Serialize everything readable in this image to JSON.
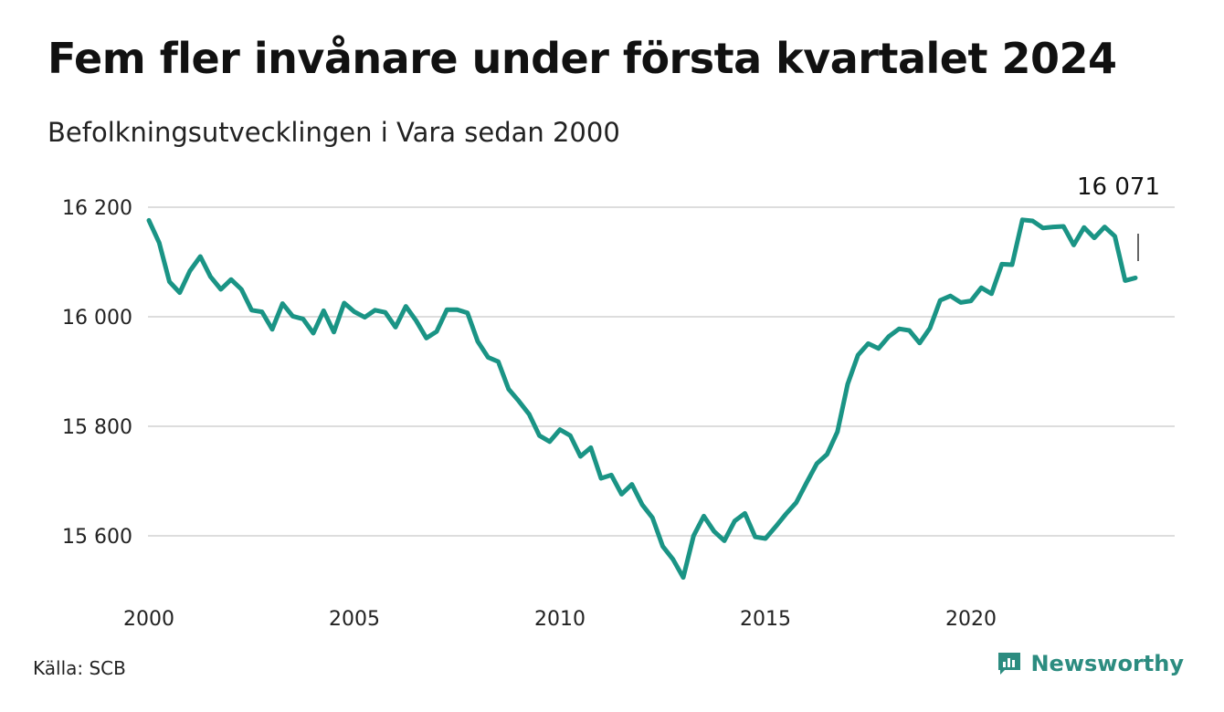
{
  "title": "Fem fler invånare under första kvartalet 2024",
  "subtitle": "Befolkningsutvecklingen i Vara sedan 2000",
  "source": "Källa: SCB",
  "brand": "Newsworthy",
  "colors": {
    "line": "#1a9485",
    "grid": "#dddddd",
    "brand": "#2c8c80"
  },
  "chart_data": {
    "type": "line",
    "title": "Fem fler invånare under första kvartalet 2024",
    "subtitle": "Befolkningsutvecklingen i Vara sedan 2000",
    "xlabel": "",
    "ylabel": "",
    "xlim": [
      2000,
      2024.25
    ],
    "ylim": [
      15500,
      16230
    ],
    "y_ticks": [
      15600,
      15800,
      16000,
      16200
    ],
    "y_tick_labels": [
      "15 600",
      "15 800",
      "16 000",
      "16 200"
    ],
    "x_ticks": [
      2000,
      2005,
      2010,
      2015,
      2020
    ],
    "x_tick_labels": [
      "2000",
      "2005",
      "2010",
      "2015",
      "2020"
    ],
    "grid": true,
    "end_label": "16 071",
    "x": [
      2000.0,
      2000.25,
      2000.5,
      2000.75,
      2001.0,
      2001.25,
      2001.5,
      2001.75,
      2002.0,
      2002.25,
      2002.5,
      2002.75,
      2003.0,
      2003.25,
      2003.5,
      2003.75,
      2004.0,
      2004.25,
      2004.5,
      2004.75,
      2005.0,
      2005.25,
      2005.5,
      2005.75,
      2006.0,
      2006.25,
      2006.5,
      2006.75,
      2007.0,
      2007.25,
      2007.5,
      2007.75,
      2008.0,
      2008.25,
      2008.5,
      2008.75,
      2009.0,
      2009.25,
      2009.5,
      2009.75,
      2010.0,
      2010.25,
      2010.5,
      2010.75,
      2011.0,
      2011.25,
      2011.5,
      2011.75,
      2012.0,
      2012.25,
      2012.5,
      2012.75,
      2013.0,
      2013.25,
      2013.5,
      2013.75,
      2014.0,
      2014.25,
      2014.5,
      2014.75,
      2015.0,
      2015.25,
      2015.5,
      2015.75,
      2016.0,
      2016.25,
      2016.5,
      2016.75,
      2017.0,
      2017.25,
      2017.5,
      2017.75,
      2018.0,
      2018.25,
      2018.5,
      2018.75,
      2019.0,
      2019.25,
      2019.5,
      2019.75,
      2020.0,
      2020.25,
      2020.5,
      2020.75,
      2021.0,
      2021.25,
      2021.5,
      2021.75,
      2022.0,
      2022.25,
      2022.5,
      2022.75,
      2023.0,
      2023.25,
      2023.5,
      2023.75,
      2024.0
    ],
    "series": [
      {
        "values": [
          16176,
          16135,
          16064,
          16044,
          16084,
          16110,
          16073,
          16050,
          16068,
          16050,
          16012,
          16009,
          15977,
          16024,
          16001,
          15996,
          15970,
          16011,
          15972,
          16025,
          16009,
          15999,
          16012,
          16008,
          15981,
          16019,
          15993,
          15961,
          15973,
          16013,
          16013,
          16007,
          15955,
          15926,
          15918,
          15868,
          15846,
          15822,
          15783,
          15772,
          15794,
          15783,
          15745,
          15761,
          15705,
          15711,
          15676,
          15694,
          15657,
          15633,
          15581,
          15557,
          15524,
          15600,
          15636,
          15608,
          15591,
          15627,
          15641,
          15598,
          15595,
          15617,
          15640,
          15661,
          15697,
          15732,
          15749,
          15790,
          15877,
          15930,
          15951,
          15942,
          15964,
          15978,
          15975,
          15952,
          15979,
          16030,
          16038,
          16026,
          16029,
          16053,
          16042,
          16096,
          16095,
          16177,
          16175,
          16162,
          16164,
          16165,
          16131,
          16163,
          16144,
          16164,
          16147,
          16066,
          16071
        ]
      }
    ]
  }
}
